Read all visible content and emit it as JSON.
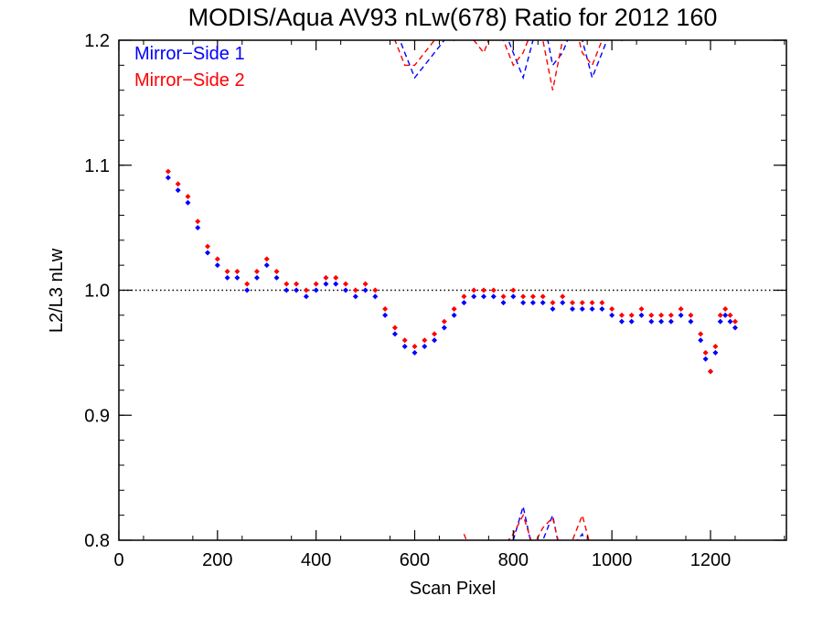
{
  "chart_data": {
    "type": "scatter",
    "title": "MODIS/Aqua AV93 nLw(678) Ratio for 2012 160",
    "xlabel": "Scan Pixel",
    "ylabel": "L2/L3 nLw",
    "xlim": [
      0,
      1354
    ],
    "ylim": [
      0.8,
      1.2
    ],
    "x_ticks": [
      0,
      200,
      400,
      600,
      800,
      1000,
      1200
    ],
    "x_tick_labels": [
      "0",
      "200",
      "400",
      "600",
      "800",
      "1000",
      "1200"
    ],
    "y_ticks": [
      0.8,
      0.9,
      1.0,
      1.1,
      1.2
    ],
    "y_tick_labels": [
      "0.8",
      "0.9",
      "1.0",
      "1.1",
      "1.2"
    ],
    "reference_line": 1.0,
    "legend_position": "top-left",
    "series": [
      {
        "name": "Mirror−Side 1",
        "color": "#0000ff",
        "marker": "diamond",
        "x": [
          100,
          120,
          140,
          160,
          180,
          200,
          220,
          240,
          260,
          280,
          300,
          320,
          340,
          360,
          380,
          400,
          420,
          440,
          460,
          480,
          500,
          520,
          540,
          560,
          580,
          600,
          620,
          640,
          660,
          680,
          700,
          720,
          740,
          760,
          780,
          800,
          820,
          840,
          860,
          880,
          900,
          920,
          940,
          960,
          980,
          1000,
          1020,
          1040,
          1060,
          1080,
          1100,
          1120,
          1140,
          1160,
          1180,
          1190,
          1200,
          1210,
          1220,
          1230,
          1240,
          1250
        ],
        "y": [
          1.09,
          1.08,
          1.07,
          1.05,
          1.03,
          1.02,
          1.01,
          1.01,
          1.0,
          1.01,
          1.02,
          1.01,
          1.0,
          1.0,
          0.995,
          1.0,
          1.005,
          1.005,
          1.0,
          0.995,
          1.0,
          0.995,
          0.98,
          0.965,
          0.955,
          0.95,
          0.955,
          0.96,
          0.97,
          0.98,
          0.99,
          0.995,
          0.995,
          0.995,
          0.99,
          0.995,
          0.99,
          0.99,
          0.99,
          0.985,
          0.99,
          0.985,
          0.985,
          0.985,
          0.985,
          0.98,
          0.975,
          0.975,
          0.98,
          0.975,
          0.975,
          0.975,
          0.98,
          0.975,
          0.96,
          0.945,
          0.935,
          0.95,
          0.975,
          0.98,
          0.975,
          0.97
        ]
      },
      {
        "name": "Mirror−Side 2",
        "color": "#ff0000",
        "marker": "diamond",
        "x": [
          100,
          120,
          140,
          160,
          180,
          200,
          220,
          240,
          260,
          280,
          300,
          320,
          340,
          360,
          380,
          400,
          420,
          440,
          460,
          480,
          500,
          520,
          540,
          560,
          580,
          600,
          620,
          640,
          660,
          680,
          700,
          720,
          740,
          760,
          780,
          800,
          820,
          840,
          860,
          880,
          900,
          920,
          940,
          960,
          980,
          1000,
          1020,
          1040,
          1060,
          1080,
          1100,
          1120,
          1140,
          1160,
          1180,
          1190,
          1200,
          1210,
          1220,
          1230,
          1240,
          1250
        ],
        "y": [
          1.095,
          1.085,
          1.075,
          1.055,
          1.035,
          1.025,
          1.015,
          1.015,
          1.005,
          1.015,
          1.025,
          1.015,
          1.005,
          1.005,
          1.0,
          1.005,
          1.01,
          1.01,
          1.005,
          1.0,
          1.005,
          1.0,
          0.985,
          0.97,
          0.96,
          0.955,
          0.96,
          0.965,
          0.975,
          0.985,
          0.995,
          1.0,
          1.0,
          1.0,
          0.995,
          1.0,
          0.995,
          0.995,
          0.995,
          0.99,
          0.995,
          0.99,
          0.99,
          0.99,
          0.99,
          0.985,
          0.98,
          0.98,
          0.985,
          0.98,
          0.98,
          0.98,
          0.985,
          0.98,
          0.965,
          0.95,
          0.935,
          0.955,
          0.98,
          0.985,
          0.98,
          0.975
        ]
      },
      {
        "name": "",
        "color": "#0000ff",
        "line_style": "dashed",
        "x": [
          520,
          540,
          560,
          580,
          600,
          620,
          640,
          660,
          680,
          700,
          720,
          740,
          760,
          780,
          800,
          820,
          840,
          860,
          880,
          900,
          920,
          940,
          960,
          980,
          1000,
          1020,
          1040
        ],
        "y": [
          1.22,
          1.24,
          1.21,
          1.19,
          1.17,
          1.18,
          1.19,
          1.2,
          1.21,
          1.23,
          1.21,
          1.2,
          1.22,
          1.21,
          1.19,
          1.17,
          1.2,
          1.22,
          1.18,
          1.19,
          1.21,
          1.2,
          1.17,
          1.19,
          1.21,
          1.2,
          1.22
        ]
      },
      {
        "name": "",
        "color": "#ff0000",
        "line_style": "dashed",
        "x": [
          520,
          540,
          560,
          580,
          600,
          620,
          640,
          660,
          680,
          700,
          720,
          740,
          760,
          780,
          800,
          820,
          840,
          860,
          880,
          900,
          920,
          940,
          960,
          980,
          1000,
          1020,
          1040
        ],
        "y": [
          1.21,
          1.23,
          1.2,
          1.18,
          1.18,
          1.19,
          1.2,
          1.21,
          1.2,
          1.22,
          1.2,
          1.19,
          1.21,
          1.2,
          1.18,
          1.19,
          1.21,
          1.2,
          1.16,
          1.2,
          1.22,
          1.19,
          1.18,
          1.2,
          1.22,
          1.21,
          1.23
        ]
      },
      {
        "name": "",
        "color": "#0000ff",
        "line_style": "dashed",
        "x": [
          700,
          720,
          740,
          760,
          780,
          800,
          820,
          840,
          860,
          880,
          900,
          920,
          940,
          960
        ],
        "y": [
          0.79,
          0.78,
          0.785,
          0.77,
          0.79,
          0.8,
          0.827,
          0.79,
          0.8,
          0.82,
          0.78,
          0.795,
          0.805,
          0.78
        ]
      },
      {
        "name": "",
        "color": "#ff0000",
        "line_style": "dashed",
        "x": [
          700,
          720,
          740,
          760,
          780,
          800,
          820,
          840,
          860,
          880,
          900,
          920,
          940,
          960
        ],
        "y": [
          0.805,
          0.785,
          0.79,
          0.775,
          0.795,
          0.805,
          0.82,
          0.795,
          0.81,
          0.818,
          0.785,
          0.8,
          0.82,
          0.79
        ]
      }
    ]
  }
}
